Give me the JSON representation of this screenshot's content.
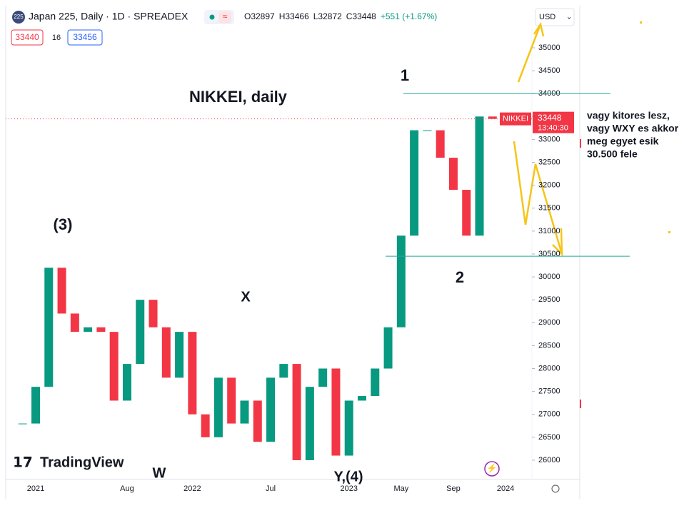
{
  "chart_data": {
    "type": "candlestick",
    "symbol_badge": "225",
    "title": "Japan 225, Daily · 1D · SPREADEX",
    "ohlc": [
      "O32897",
      "H33466",
      "L32872",
      "C33448",
      "+551 (+1.67%)"
    ],
    "bid": "33440",
    "spread": "16",
    "ask": "33456",
    "currency": "USD",
    "name": "NIKKEI",
    "price_time": "13:40:30",
    "brand": "TradingView",
    "categories": [
      null,
      "2021",
      null,
      null,
      null,
      null,
      null,
      null,
      "Aug",
      null,
      null,
      null,
      null,
      "2022",
      null,
      null,
      null,
      null,
      null,
      "Jul",
      null,
      null,
      null,
      null,
      null,
      "2023",
      null,
      null,
      null,
      "May",
      null,
      null,
      null,
      "Sep",
      null,
      null,
      null,
      "2024"
    ],
    "values": [
      26800,
      27600,
      30200,
      29200,
      28800,
      28900,
      28800,
      27300,
      28100,
      29500,
      28900,
      27800,
      28800,
      27000,
      26500,
      27800,
      26800,
      27300,
      26400,
      27800,
      28100,
      26000,
      27600,
      28000,
      26100,
      27300,
      27400,
      28000,
      28900,
      30900,
      33200,
      33200,
      32600,
      31900,
      30900,
      33500,
      33448,
      null
    ],
    "up_color": "#089981",
    "down_color": "#f23645",
    "ylim": [
      25610,
      35420
    ],
    "yticks": [
      26000,
      26500,
      27000,
      27500,
      28000,
      28500,
      29000,
      29500,
      30000,
      30500,
      31000,
      31500,
      32000,
      32500,
      33000,
      33500,
      34000,
      34500,
      35000
    ],
    "levels": [
      34000,
      30450
    ],
    "level_color": "#26a69a",
    "annotations": [
      "NIKKEI, daily",
      "1",
      "2",
      "(3)",
      "X",
      "W",
      "Y,(4)"
    ],
    "note": [
      "vagy kitores lesz,",
      "vagy WXY es akkor",
      "meg egyet esik",
      "30.500 fele"
    ]
  }
}
